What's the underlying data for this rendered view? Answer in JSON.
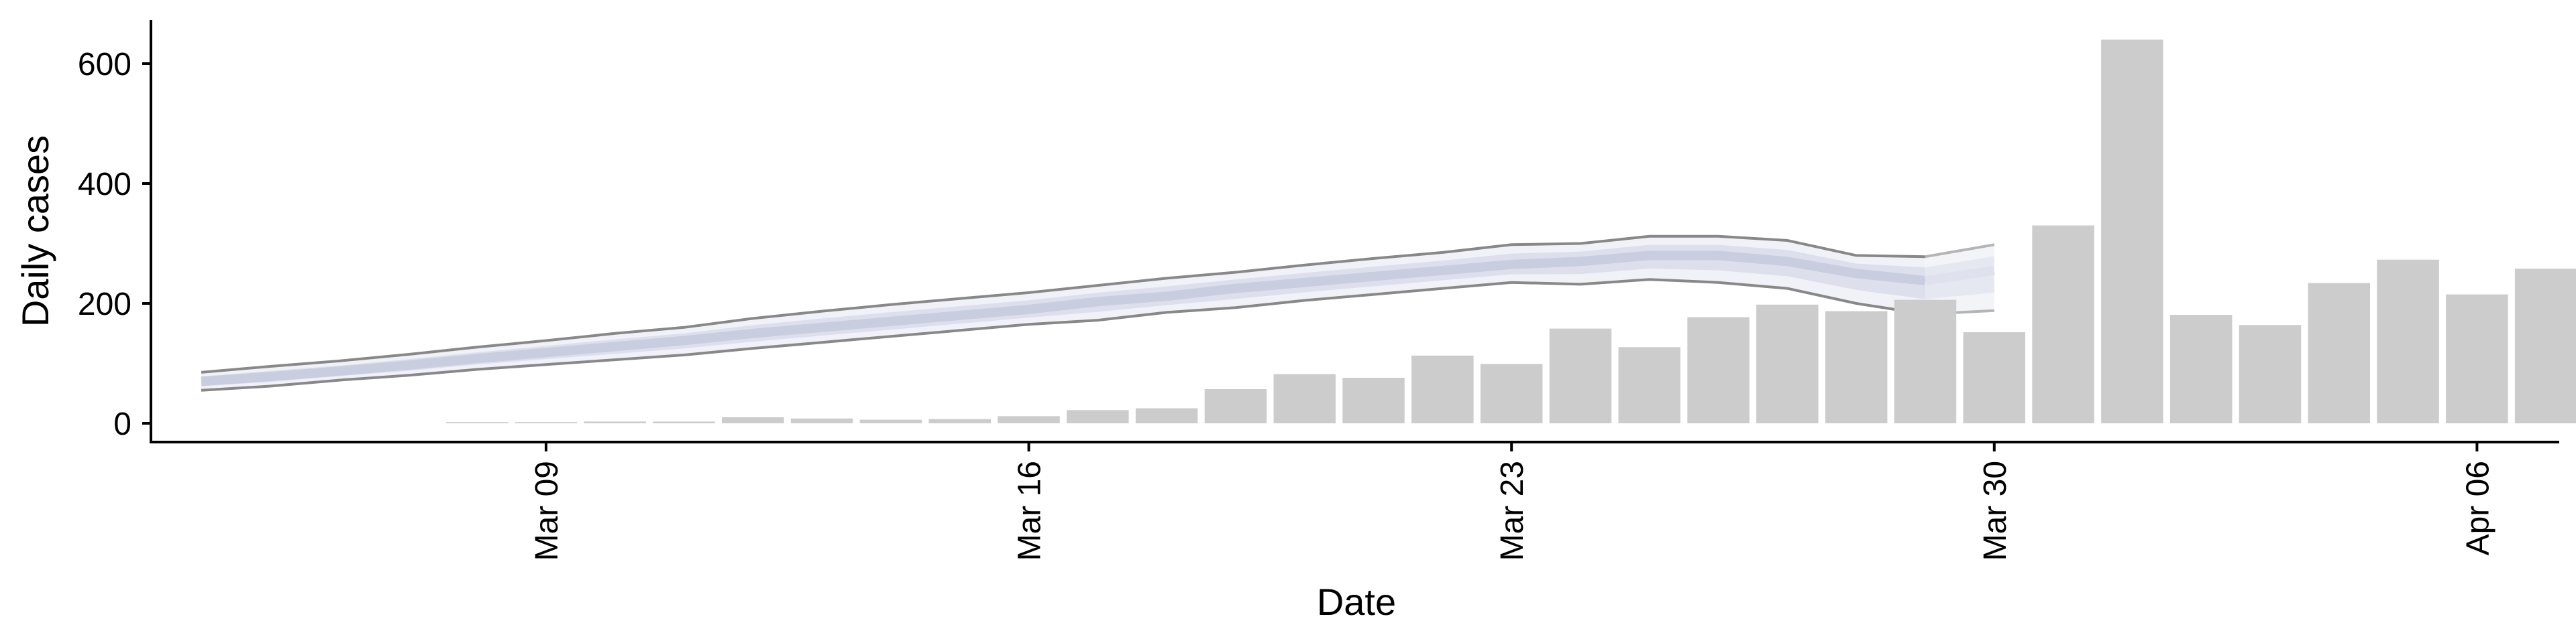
{
  "chart_data": {
    "type": "bar",
    "title": "",
    "xlabel": "Date",
    "ylabel": "Daily cases",
    "ylim": [
      0,
      600
    ],
    "y_ticks": [
      0,
      200,
      400,
      600
    ],
    "x_ticks": [
      {
        "date": "2020-03-09",
        "label": "Mar 09"
      },
      {
        "date": "2020-03-16",
        "label": "Mar 16"
      },
      {
        "date": "2020-03-23",
        "label": "Mar 23"
      },
      {
        "date": "2020-03-30",
        "label": "Mar 30"
      },
      {
        "date": "2020-04-06",
        "label": "Apr 06"
      }
    ],
    "x_range": [
      "2020-03-04",
      "2020-04-10"
    ],
    "grid": false,
    "legend": "none",
    "bar_color": "#cccccc",
    "bars": {
      "dates": [
        "2020-03-08",
        "2020-03-09",
        "2020-03-10",
        "2020-03-11",
        "2020-03-12",
        "2020-03-13",
        "2020-03-14",
        "2020-03-15",
        "2020-03-16",
        "2020-03-17",
        "2020-03-18",
        "2020-03-19",
        "2020-03-20",
        "2020-03-21",
        "2020-03-22",
        "2020-03-23",
        "2020-03-24",
        "2020-03-25",
        "2020-03-26",
        "2020-03-27",
        "2020-03-28",
        "2020-03-29",
        "2020-03-30",
        "2020-03-31",
        "2020-04-01",
        "2020-04-02",
        "2020-04-03",
        "2020-04-04",
        "2020-04-05",
        "2020-04-06",
        "2020-04-07"
      ],
      "values": [
        2,
        2,
        3,
        3,
        10,
        8,
        6,
        7,
        12,
        22,
        25,
        57,
        82,
        76,
        113,
        99,
        158,
        127,
        177,
        198,
        187,
        206,
        152,
        330,
        640,
        181,
        164,
        234,
        273,
        215,
        258
      ]
    },
    "bands": [
      {
        "role": "estimate",
        "color": "#dde0ec",
        "outer_color": "#f1f2f7",
        "line_color": "#888888",
        "dates": [
          "2020-03-04",
          "2020-03-05",
          "2020-03-06",
          "2020-03-07",
          "2020-03-08",
          "2020-03-09",
          "2020-03-10",
          "2020-03-11",
          "2020-03-12",
          "2020-03-13",
          "2020-03-14",
          "2020-03-15",
          "2020-03-16",
          "2020-03-17",
          "2020-03-18",
          "2020-03-19",
          "2020-03-20",
          "2020-03-21",
          "2020-03-22",
          "2020-03-23",
          "2020-03-24",
          "2020-03-25",
          "2020-03-26",
          "2020-03-27",
          "2020-03-28",
          "2020-03-29"
        ],
        "median": [
          70,
          78,
          87,
          97,
          108,
          118,
          128,
          138,
          150,
          160,
          170,
          180,
          190,
          203,
          212,
          225,
          235,
          245,
          255,
          265,
          270,
          280,
          280,
          270,
          250,
          238
        ],
        "lower": [
          55,
          62,
          72,
          80,
          90,
          98,
          106,
          114,
          125,
          135,
          145,
          155,
          165,
          172,
          185,
          193,
          205,
          215,
          225,
          235,
          232,
          240,
          235,
          225,
          200,
          182
        ],
        "upper": [
          85,
          95,
          104,
          115,
          127,
          138,
          150,
          160,
          175,
          187,
          198,
          208,
          218,
          230,
          242,
          252,
          264,
          275,
          285,
          298,
          300,
          312,
          312,
          305,
          280,
          278
        ]
      },
      {
        "role": "forecast",
        "color": "#e6e8f1",
        "outer_color": "#f3f4f8",
        "line_color": "#b5b5b5",
        "dates": [
          "2020-03-29",
          "2020-03-30"
        ],
        "median": [
          238,
          255
        ],
        "lower": [
          182,
          188
        ],
        "upper": [
          278,
          298
        ]
      }
    ]
  }
}
